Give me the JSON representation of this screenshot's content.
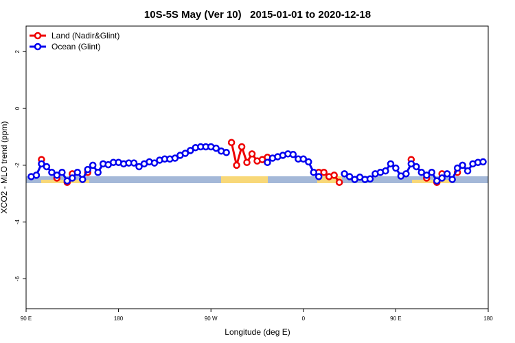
{
  "chart_data": {
    "type": "line",
    "title": "10S-5S May (Ver 10)   2015-01-01 to 2020-12-18",
    "x_label": "Longitude (deg E)",
    "y_label": "XCO2 - MLO trend (ppm)",
    "x": [
      95,
      100,
      105,
      110,
      115,
      120,
      125,
      130,
      135,
      140,
      145,
      150,
      155,
      160,
      165,
      170,
      175,
      180,
      185,
      190,
      195,
      200,
      205,
      210,
      215,
      220,
      225,
      230,
      235,
      240,
      245,
      250,
      255,
      260,
      265,
      270,
      275,
      280,
      285,
      290,
      295,
      300,
      305,
      310,
      315,
      320,
      325,
      330,
      335,
      340,
      345,
      350,
      355,
      360,
      365,
      370,
      375,
      380,
      385,
      390,
      395,
      400,
      405,
      410,
      415,
      420,
      425,
      430,
      435,
      440,
      445,
      450,
      455,
      460,
      465,
      470,
      475,
      480,
      485,
      490,
      495,
      500,
      505,
      510,
      515,
      520,
      525,
      530,
      535
    ],
    "series": [
      {
        "name": "Land (Nadir&Glint)",
        "color": "#ee0000",
        "values": [
          null,
          null,
          -1.8,
          null,
          null,
          -2.45,
          null,
          -2.6,
          -2.3,
          null,
          null,
          -2.25,
          null,
          null,
          null,
          null,
          null,
          null,
          null,
          null,
          null,
          null,
          null,
          null,
          null,
          null,
          null,
          null,
          null,
          null,
          null,
          null,
          null,
          null,
          null,
          null,
          null,
          null,
          null,
          -1.2,
          -2.0,
          -1.35,
          -1.9,
          -1.6,
          -1.85,
          -1.8,
          -1.72,
          null,
          null,
          null,
          null,
          null,
          null,
          null,
          null,
          null,
          -2.25,
          -2.25,
          -2.4,
          -2.35,
          -2.6,
          null,
          null,
          null,
          null,
          null,
          null,
          null,
          null,
          null,
          null,
          null,
          null,
          null,
          -1.8,
          null,
          null,
          -2.45,
          null,
          -2.6,
          -2.3,
          null,
          null,
          -2.25,
          null,
          null,
          null,
          null,
          null
        ]
      },
      {
        "name": "Ocean (Glint)",
        "color": "#0000ee",
        "values": [
          -2.4,
          -2.35,
          -1.95,
          -2.05,
          -2.25,
          -2.35,
          -2.25,
          -2.55,
          -2.45,
          -2.25,
          -2.5,
          -2.15,
          -2.0,
          -2.25,
          -1.95,
          -1.98,
          -1.9,
          -1.9,
          -1.95,
          -1.92,
          -1.92,
          -2.05,
          -1.95,
          -1.88,
          -1.92,
          -1.82,
          -1.78,
          -1.78,
          -1.75,
          -1.65,
          -1.58,
          -1.48,
          -1.38,
          -1.35,
          -1.35,
          -1.35,
          -1.4,
          -1.5,
          -1.55,
          null,
          null,
          null,
          null,
          null,
          null,
          null,
          -1.9,
          -1.75,
          -1.7,
          -1.65,
          -1.6,
          -1.62,
          -1.78,
          -1.78,
          -1.88,
          -2.25,
          -2.4,
          null,
          null,
          null,
          null,
          -2.3,
          -2.4,
          -2.5,
          -2.42,
          -2.5,
          -2.48,
          -2.3,
          -2.25,
          -2.2,
          -1.95,
          -2.1,
          -2.38,
          -2.3,
          -1.95,
          -2.05,
          -2.25,
          -2.35,
          -2.25,
          -2.55,
          -2.45,
          -2.3,
          -2.5,
          -2.1,
          -2.0,
          -2.2,
          -1.95,
          -1.9,
          -1.88
        ]
      }
    ],
    "xlim": [
      90,
      540
    ],
    "xticks": [
      {
        "value": 90,
        "label": "90 E"
      },
      180,
      {
        "value": 270,
        "label": "90 W"
      },
      {
        "value": 360,
        "label": "0"
      },
      {
        "value": 450,
        "label": "90 E"
      },
      {
        "value": 540,
        "label": "180"
      }
    ],
    "ylim": [
      -7.05,
      2.9
    ],
    "yticks": [
      2,
      0,
      -2,
      -4,
      -6
    ],
    "legend": "upper left"
  }
}
